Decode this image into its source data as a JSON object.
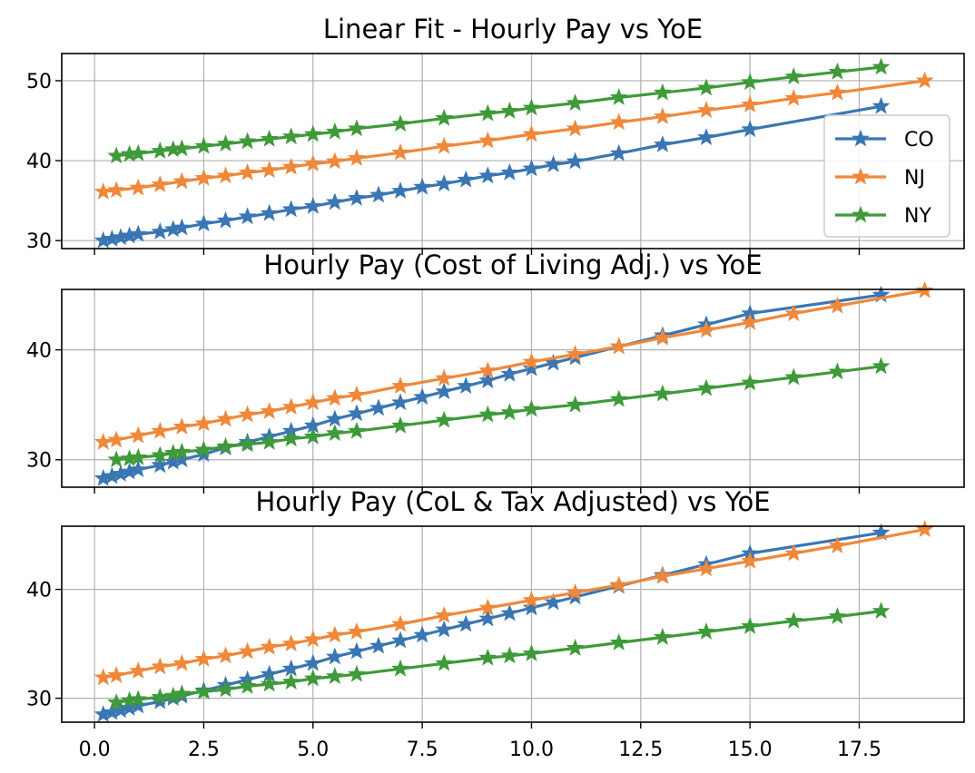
{
  "chart_data": [
    {
      "type": "line",
      "title": "Linear Fit - Hourly Pay vs YoE",
      "xlabel": "",
      "ylabel": "",
      "xlim": [
        -0.75,
        19.9
      ],
      "ylim": [
        29,
        53.4
      ],
      "yticks": [
        30,
        40,
        50
      ],
      "grid": true,
      "legend": "right",
      "series": [
        {
          "name": "CO",
          "color": "#3a76b3",
          "x": [
            0.2,
            0.4,
            0.6,
            0.8,
            1.0,
            1.5,
            1.8,
            2.0,
            2.5,
            3.0,
            3.5,
            4.0,
            4.5,
            5.0,
            5.5,
            6.0,
            6.5,
            7.0,
            7.5,
            8.0,
            8.5,
            9.0,
            9.5,
            10.0,
            10.5,
            11.0,
            12.0,
            13.0,
            14.0,
            15.0,
            18.0
          ],
          "y": [
            30.0,
            30.2,
            30.4,
            30.6,
            30.8,
            31.1,
            31.4,
            31.6,
            32.1,
            32.5,
            33.0,
            33.4,
            33.9,
            34.3,
            34.8,
            35.3,
            35.7,
            36.2,
            36.7,
            37.1,
            37.6,
            38.1,
            38.5,
            39.0,
            39.5,
            39.9,
            40.9,
            42.0,
            42.9,
            43.9,
            46.8
          ]
        },
        {
          "name": "NJ",
          "color": "#f0883a",
          "x": [
            0.2,
            0.5,
            1.0,
            1.5,
            2.0,
            2.5,
            3.0,
            3.5,
            4.0,
            4.5,
            5.0,
            5.5,
            6.0,
            7.0,
            8.0,
            9.0,
            10.0,
            11.0,
            12.0,
            13.0,
            14.0,
            15.0,
            16.0,
            17.0,
            19.0
          ],
          "y": [
            36.1,
            36.3,
            36.6,
            37.0,
            37.4,
            37.8,
            38.1,
            38.5,
            38.8,
            39.2,
            39.6,
            39.9,
            40.3,
            41.0,
            41.8,
            42.5,
            43.3,
            44.0,
            44.8,
            45.5,
            46.3,
            47.0,
            47.8,
            48.5,
            50.0
          ]
        },
        {
          "name": "NY",
          "color": "#3f9a3a",
          "x": [
            0.5,
            0.8,
            1.0,
            1.5,
            1.8,
            2.0,
            2.5,
            3.0,
            3.5,
            4.0,
            4.5,
            5.0,
            5.5,
            6.0,
            7.0,
            8.0,
            9.0,
            9.5,
            10.0,
            11.0,
            12.0,
            13.0,
            14.0,
            15.0,
            16.0,
            17.0,
            18.0
          ],
          "y": [
            40.6,
            40.8,
            40.9,
            41.2,
            41.4,
            41.5,
            41.8,
            42.1,
            42.4,
            42.7,
            43.0,
            43.3,
            43.6,
            44.0,
            44.6,
            45.3,
            45.9,
            46.2,
            46.6,
            47.2,
            47.9,
            48.5,
            49.1,
            49.8,
            50.5,
            51.1,
            51.7
          ]
        }
      ]
    },
    {
      "type": "line",
      "title": "Hourly Pay (Cost of Living Adj.) vs YoE",
      "xlabel": "",
      "ylabel": "",
      "xlim": [
        -0.75,
        19.9
      ],
      "ylim": [
        27.5,
        45.5
      ],
      "yticks": [
        30,
        40
      ],
      "grid": true,
      "series": [
        {
          "name": "CO",
          "color": "#3a76b3",
          "x": [
            0.2,
            0.4,
            0.6,
            0.8,
            1.0,
            1.5,
            1.8,
            2.0,
            2.5,
            3.0,
            3.5,
            4.0,
            4.5,
            5.0,
            5.5,
            6.0,
            6.5,
            7.0,
            7.5,
            8.0,
            8.5,
            9.0,
            9.5,
            10.0,
            10.5,
            11.0,
            12.0,
            13.0,
            14.0,
            15.0,
            18.0
          ],
          "y": [
            28.3,
            28.5,
            28.7,
            28.9,
            29.1,
            29.5,
            29.8,
            30.0,
            30.5,
            31.1,
            31.6,
            32.1,
            32.6,
            33.1,
            33.7,
            34.2,
            34.7,
            35.2,
            35.7,
            36.2,
            36.7,
            37.2,
            37.8,
            38.3,
            38.8,
            39.3,
            40.3,
            41.3,
            42.3,
            43.3,
            45.0
          ]
        },
        {
          "name": "NJ",
          "color": "#f0883a",
          "x": [
            0.2,
            0.5,
            1.0,
            1.5,
            2.0,
            2.5,
            3.0,
            3.5,
            4.0,
            4.5,
            5.0,
            5.5,
            6.0,
            7.0,
            8.0,
            9.0,
            10.0,
            11.0,
            12.0,
            13.0,
            14.0,
            15.0,
            16.0,
            17.0,
            19.0
          ],
          "y": [
            31.6,
            31.8,
            32.2,
            32.6,
            33.0,
            33.3,
            33.7,
            34.1,
            34.4,
            34.8,
            35.2,
            35.6,
            35.9,
            36.7,
            37.4,
            38.1,
            38.9,
            39.6,
            40.3,
            41.1,
            41.8,
            42.5,
            43.3,
            44.0,
            45.4
          ]
        },
        {
          "name": "NY",
          "color": "#3f9a3a",
          "x": [
            0.5,
            0.8,
            1.0,
            1.5,
            1.8,
            2.0,
            2.5,
            3.0,
            3.5,
            4.0,
            4.5,
            5.0,
            5.5,
            6.0,
            7.0,
            8.0,
            9.0,
            9.5,
            10.0,
            11.0,
            12.0,
            13.0,
            14.0,
            15.0,
            16.0,
            17.0,
            18.0
          ],
          "y": [
            30.0,
            30.1,
            30.2,
            30.4,
            30.6,
            30.7,
            30.9,
            31.2,
            31.4,
            31.6,
            31.9,
            32.1,
            32.4,
            32.6,
            33.1,
            33.6,
            34.1,
            34.3,
            34.6,
            35.0,
            35.5,
            36.0,
            36.5,
            37.0,
            37.5,
            38.0,
            38.5
          ]
        }
      ]
    },
    {
      "type": "line",
      "title": "Hourly Pay (CoL & Tax Adjusted) vs YoE",
      "xlabel": "",
      "ylabel": "",
      "xlim": [
        -0.75,
        19.9
      ],
      "ylim": [
        27.8,
        45.8
      ],
      "yticks": [
        30,
        40
      ],
      "xticks": [
        0.0,
        2.5,
        5.0,
        7.5,
        10.0,
        12.5,
        15.0,
        17.5
      ],
      "grid": true,
      "series": [
        {
          "name": "CO",
          "color": "#3a76b3",
          "x": [
            0.2,
            0.4,
            0.6,
            0.8,
            1.0,
            1.5,
            1.8,
            2.0,
            2.5,
            3.0,
            3.5,
            4.0,
            4.5,
            5.0,
            5.5,
            6.0,
            6.5,
            7.0,
            7.5,
            8.0,
            8.5,
            9.0,
            9.5,
            10.0,
            10.5,
            11.0,
            12.0,
            13.0,
            14.0,
            15.0,
            18.0
          ],
          "y": [
            28.5,
            28.7,
            28.9,
            29.1,
            29.3,
            29.7,
            30.0,
            30.2,
            30.7,
            31.2,
            31.7,
            32.2,
            32.7,
            33.2,
            33.8,
            34.3,
            34.8,
            35.3,
            35.8,
            36.3,
            36.8,
            37.3,
            37.8,
            38.3,
            38.8,
            39.3,
            40.3,
            41.3,
            42.3,
            43.3,
            45.2
          ]
        },
        {
          "name": "NJ",
          "color": "#f0883a",
          "x": [
            0.2,
            0.5,
            1.0,
            1.5,
            2.0,
            2.5,
            3.0,
            3.5,
            4.0,
            4.5,
            5.0,
            5.5,
            6.0,
            7.0,
            8.0,
            9.0,
            10.0,
            11.0,
            12.0,
            13.0,
            14.0,
            15.0,
            16.0,
            17.0,
            19.0
          ],
          "y": [
            31.9,
            32.1,
            32.5,
            32.9,
            33.2,
            33.6,
            33.9,
            34.3,
            34.7,
            35.0,
            35.4,
            35.8,
            36.1,
            36.8,
            37.6,
            38.3,
            39.0,
            39.7,
            40.4,
            41.2,
            41.9,
            42.6,
            43.3,
            44.0,
            45.5
          ]
        },
        {
          "name": "NY",
          "color": "#3f9a3a",
          "x": [
            0.5,
            0.8,
            1.0,
            1.5,
            1.8,
            2.0,
            2.5,
            3.0,
            3.5,
            4.0,
            4.5,
            5.0,
            5.5,
            6.0,
            7.0,
            8.0,
            9.0,
            9.5,
            10.0,
            11.0,
            12.0,
            13.0,
            14.0,
            15.0,
            16.0,
            17.0,
            18.0
          ],
          "y": [
            29.6,
            29.8,
            29.9,
            30.1,
            30.2,
            30.4,
            30.6,
            30.8,
            31.1,
            31.3,
            31.5,
            31.8,
            32.0,
            32.2,
            32.7,
            33.2,
            33.7,
            33.9,
            34.1,
            34.6,
            35.1,
            35.6,
            36.1,
            36.6,
            37.1,
            37.5,
            38.0
          ]
        }
      ]
    }
  ],
  "legend": {
    "entries": [
      "CO",
      "NJ",
      "NY"
    ]
  }
}
